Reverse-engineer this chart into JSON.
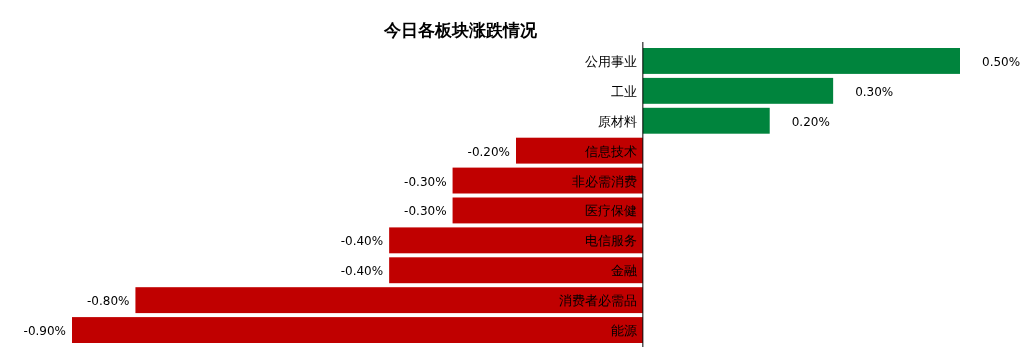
{
  "chart_data": {
    "type": "bar",
    "orientation": "horizontal",
    "title": "今日各板块涨跌情况",
    "categories": [
      "公用事业",
      "工业",
      "原材料",
      "信息技术",
      "非必需消费",
      "医疗保健",
      "电信服务",
      "金融",
      "消费者必需品",
      "能源"
    ],
    "values": [
      0.5,
      0.3,
      0.2,
      -0.2,
      -0.3,
      -0.3,
      -0.4,
      -0.4,
      -0.8,
      -0.9
    ],
    "value_labels": [
      "0.50%",
      "0.30%",
      "0.20%",
      "-0.20%",
      "-0.30%",
      "-0.30%",
      "-0.40%",
      "-0.40%",
      "-0.80%",
      "-0.90%"
    ],
    "colors": [
      "#00843d",
      "#00843d",
      "#00843d",
      "#c00000",
      "#c00000",
      "#c00000",
      "#c00000",
      "#c00000",
      "#c00000",
      "#c00000"
    ]
  }
}
